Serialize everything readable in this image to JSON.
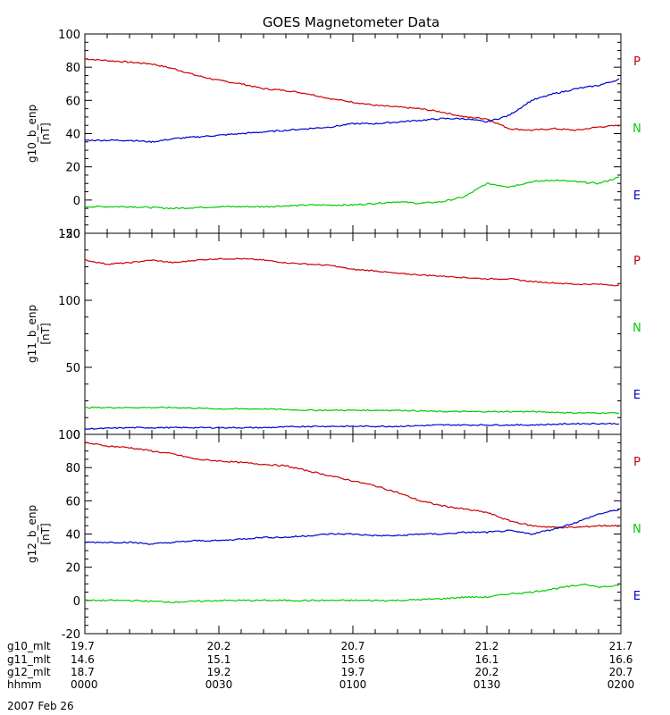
{
  "chart_data": {
    "type": "line",
    "title": "GOES Magnetometer Data",
    "x_range_minutes": [
      0,
      120
    ],
    "colors": {
      "P": "#cc0000",
      "N": "#00cc00",
      "E": "#0000cc"
    },
    "panels": [
      {
        "ylabel": "g10_b_enp",
        "yunit": "[nT]",
        "ylim": [
          -20,
          100
        ],
        "yticks": [
          -20,
          0,
          20,
          40,
          60,
          80,
          100
        ],
        "legend": [
          "P",
          "N",
          "E"
        ],
        "series": [
          {
            "name": "P",
            "x": [
              0,
              5,
              10,
              15,
              20,
              25,
              30,
              35,
              40,
              45,
              50,
              55,
              60,
              65,
              70,
              75,
              80,
              85,
              90,
              95,
              100,
              105,
              110,
              115,
              120
            ],
            "values": [
              85,
              84,
              83,
              82,
              79,
              75,
              72,
              70,
              67,
              66,
              64,
              61,
              59,
              57,
              56,
              55,
              53,
              50,
              49,
              43,
              42,
              43,
              42,
              44,
              45
            ]
          },
          {
            "name": "N",
            "x": [
              0,
              10,
              20,
              30,
              40,
              50,
              60,
              65,
              70,
              75,
              80,
              85,
              90,
              95,
              100,
              105,
              110,
              115,
              120
            ],
            "values": [
              -4,
              -4,
              -5,
              -4,
              -4,
              -3,
              -3,
              -2,
              -1,
              -2,
              -1,
              2,
              10,
              8,
              11,
              12,
              11,
              10,
              14
            ]
          },
          {
            "name": "E",
            "x": [
              0,
              5,
              10,
              15,
              20,
              25,
              30,
              35,
              40,
              45,
              50,
              55,
              60,
              65,
              70,
              75,
              80,
              85,
              90,
              95,
              100,
              105,
              110,
              115,
              120
            ],
            "values": [
              36,
              36,
              36,
              35,
              37,
              38,
              39,
              40,
              41,
              42,
              43,
              44,
              46,
              46,
              47,
              48,
              49,
              49,
              47,
              51,
              60,
              64,
              67,
              69,
              73
            ]
          }
        ]
      },
      {
        "ylabel": "g11_b_enp",
        "yunit": "[nT]",
        "ylim": [
          0,
          150
        ],
        "yticks": [
          0,
          50,
          100,
          150
        ],
        "legend": [
          "P",
          "N",
          "E"
        ],
        "series": [
          {
            "name": "P",
            "x": [
              0,
              5,
              10,
              15,
              20,
              25,
              30,
              35,
              40,
              45,
              50,
              55,
              60,
              65,
              70,
              75,
              80,
              85,
              90,
              95,
              100,
              105,
              110,
              115,
              120
            ],
            "values": [
              130,
              127,
              128,
              130,
              128,
              130,
              131,
              131,
              130,
              128,
              127,
              126,
              123,
              122,
              120,
              119,
              118,
              117,
              116,
              116,
              114,
              113,
              112,
              112,
              111
            ]
          },
          {
            "name": "N",
            "x": [
              0,
              10,
              20,
              30,
              40,
              50,
              60,
              70,
              80,
              90,
              100,
              110,
              120
            ],
            "values": [
              20,
              20,
              20,
              19,
              19,
              18,
              18,
              18,
              17,
              17,
              17,
              16,
              16
            ]
          },
          {
            "name": "E",
            "x": [
              0,
              10,
              20,
              30,
              40,
              50,
              60,
              70,
              80,
              90,
              100,
              110,
              120
            ],
            "values": [
              4,
              5,
              5,
              5,
              5,
              6,
              6,
              6,
              7,
              7,
              7,
              8,
              8
            ]
          }
        ]
      },
      {
        "ylabel": "g12_b_enp",
        "yunit": "[nT]",
        "ylim": [
          -20,
          100
        ],
        "yticks": [
          -20,
          0,
          20,
          40,
          60,
          80,
          100
        ],
        "legend": [
          "P",
          "N",
          "E"
        ],
        "series": [
          {
            "name": "P",
            "x": [
              0,
              5,
              10,
              15,
              20,
              25,
              30,
              35,
              40,
              45,
              50,
              55,
              60,
              65,
              70,
              75,
              80,
              85,
              90,
              95,
              100,
              105,
              110,
              115,
              120
            ],
            "values": [
              95,
              93,
              92,
              90,
              88,
              85,
              84,
              83,
              82,
              81,
              78,
              75,
              72,
              69,
              65,
              60,
              57,
              55,
              53,
              48,
              45,
              44,
              44,
              45,
              45
            ]
          },
          {
            "name": "N",
            "x": [
              0,
              10,
              20,
              30,
              40,
              50,
              60,
              70,
              80,
              85,
              90,
              95,
              100,
              105,
              110,
              112,
              115,
              120
            ],
            "values": [
              0,
              0,
              -1,
              0,
              0,
              0,
              0,
              0,
              1,
              2,
              2,
              4,
              5,
              7,
              9,
              10,
              8,
              9
            ]
          },
          {
            "name": "E",
            "x": [
              0,
              5,
              10,
              15,
              20,
              25,
              30,
              35,
              40,
              45,
              50,
              55,
              60,
              65,
              70,
              75,
              80,
              85,
              90,
              95,
              100,
              105,
              110,
              115,
              120
            ],
            "values": [
              35,
              35,
              35,
              34,
              35,
              36,
              36,
              37,
              38,
              38,
              39,
              40,
              40,
              39,
              39,
              40,
              40,
              41,
              41,
              42,
              40,
              43,
              47,
              52,
              55
            ]
          }
        ]
      }
    ],
    "x_axis_rows": [
      {
        "label": "g10_mlt",
        "values": [
          "19.7",
          "20.2",
          "20.7",
          "21.2",
          "21.7"
        ]
      },
      {
        "label": "g11_mlt",
        "values": [
          "14.6",
          "15.1",
          "15.6",
          "16.1",
          "16.6"
        ]
      },
      {
        "label": "g12_mlt",
        "values": [
          "18.7",
          "19.2",
          "19.7",
          "20.2",
          "20.7"
        ]
      },
      {
        "label": "hhmm",
        "values": [
          "0000",
          "0030",
          "0100",
          "0130",
          "0200"
        ]
      }
    ],
    "date_label": "2007 Feb 26"
  }
}
